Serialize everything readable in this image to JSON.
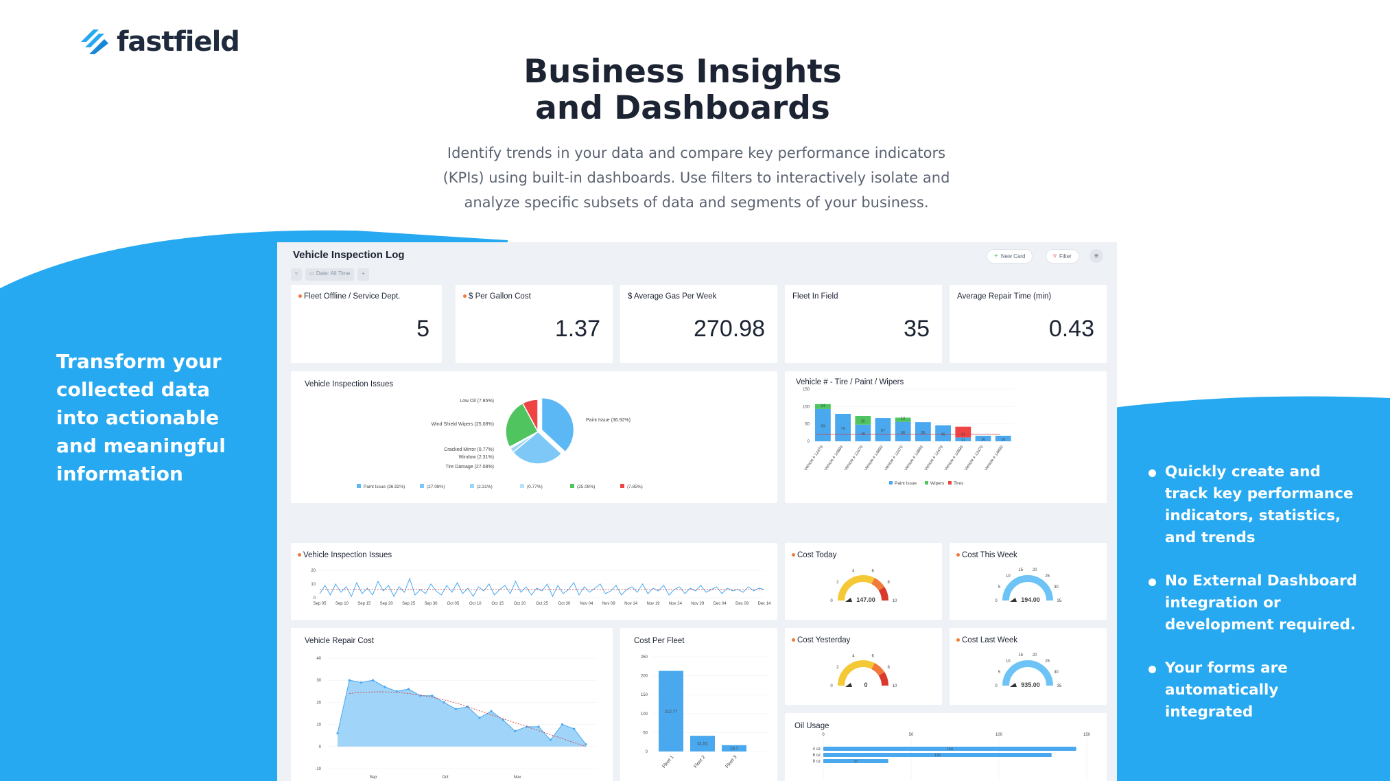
{
  "brand": {
    "name": "fastfield",
    "logo_icon": "stripes-logo-icon",
    "accent": "#26a9f1",
    "dark": "#1c2333"
  },
  "hero": {
    "title_line1": "Business Insights",
    "title_line2": "and Dashboards",
    "subtitle": "Identify trends in your data and compare key performance indicators (KPIs) using built-in dashboards. Use filters to interactively isolate and analyze specific subsets of data and segments of your business."
  },
  "left_panel": {
    "heading": "Transform your collected data into actionable and meaningful information"
  },
  "right_panel": {
    "bullets": [
      "Quickly create and track key performance indicators, statistics, and trends",
      "No External Dashboard integration or development required.",
      "Your forms are automatically integrated"
    ]
  },
  "dashboard": {
    "title": "Vehicle Inspection Log",
    "new_card_label": "New Card",
    "filter_label": "Filter",
    "date_filter": {
      "label": "Date:",
      "value": "All Time"
    },
    "kpis": [
      {
        "label": "Fleet Offline / Service Dept.",
        "value": "5",
        "dot": true
      },
      {
        "label": "$ Per Gallon Cost",
        "value": "1.37",
        "dot": true
      },
      {
        "label": "$ Average Gas Per Week",
        "value": "270.98",
        "dot": false
      },
      {
        "label": "Fleet In Field",
        "value": "35",
        "dot": false
      },
      {
        "label": "Average Repair Time (min)",
        "value": "0.43",
        "dot": false
      }
    ],
    "gauges": [
      {
        "label": "Cost Today",
        "value": "147.00",
        "ticks": [
          "0",
          "2",
          "4",
          "6",
          "8",
          "10"
        ]
      },
      {
        "label": "Cost This Week",
        "value": "194.00",
        "ticks": [
          "0",
          "5",
          "10",
          "15",
          "20",
          "25",
          "30",
          "35"
        ]
      },
      {
        "label": "Cost Yesterday",
        "value": "0",
        "ticks": [
          "0",
          "2",
          "4",
          "6",
          "8",
          "10"
        ]
      },
      {
        "label": "Cost Last Week",
        "value": "935.00",
        "ticks": [
          "0",
          "5",
          "10",
          "15",
          "20",
          "25",
          "30",
          "35"
        ]
      }
    ]
  },
  "chart_data": [
    {
      "type": "pie",
      "title": "Vehicle Inspection Issues",
      "slices": [
        {
          "label": "Paint Issue",
          "value": 36.92,
          "pct": "(36.92%)",
          "color": "#5bb8f5"
        },
        {
          "label": "Tire Damage",
          "value": 27.08,
          "pct": "(27.08%)",
          "color": "#7ec8f7"
        },
        {
          "label": "Window",
          "value": 2.31,
          "pct": "(2.31%)",
          "color": "#9dd5f8"
        },
        {
          "label": "Cracked Mirror",
          "value": 0.77,
          "pct": "(0.77%)",
          "color": "#b9e1fa"
        },
        {
          "label": "Wind Shield Wipers",
          "value": 25.08,
          "pct": "(25.08%)",
          "color": "#4fc45f"
        },
        {
          "label": "Low Oil",
          "value": 7.85,
          "pct": "(7.85%)",
          "color": "#ef4444"
        }
      ],
      "legend": [
        "Paint Issue (36.92%)",
        "(27.08%)",
        "(2.31%)",
        "(0.77%)",
        "(25.08%)",
        "(7.85%)"
      ]
    },
    {
      "type": "bar",
      "title": "Vehicle # - Tire / Paint / Wipers",
      "categories": [
        "Vehicle # 12470",
        "Vehicle # 14880",
        "Vehicle # 12470",
        "Vehicle # 14880",
        "Vehicle # 12470",
        "Vehicle # 14880",
        "Vehicle # 12470",
        "Vehicle # 14880",
        "Vehicle # 12470",
        "Vehicle # 14880"
      ],
      "series": [
        {
          "name": "Paint Issue",
          "color": "#4aa8ef",
          "values": [
            93,
            79,
            48,
            67,
            56,
            55,
            46,
            11,
            16,
            16
          ]
        },
        {
          "name": "Wipers",
          "color": "#4fc45f",
          "values": [
            14,
            0,
            25,
            0,
            12,
            0,
            0,
            0,
            0,
            0
          ]
        },
        {
          "name": "Tires",
          "color": "#ef4444",
          "values": [
            0,
            0,
            0,
            0,
            0,
            0,
            0,
            31,
            0,
            0
          ]
        }
      ],
      "bar_labels": [
        "93",
        "79",
        "48",
        "67",
        "56",
        "55",
        "46",
        "11",
        "16",
        "16"
      ],
      "stack_labels": [
        "14",
        "",
        "25",
        "",
        "12",
        "",
        "",
        "31",
        "",
        ""
      ],
      "ylim": [
        0,
        150
      ],
      "yticks": [
        "0",
        "50",
        "100",
        "150"
      ],
      "legend": [
        "Paint Issue",
        "Wipers",
        "Tires"
      ]
    },
    {
      "type": "line",
      "title": "Vehicle Inspection Issues",
      "xticks": [
        "Sep 05",
        "Sep 10",
        "Sep 15",
        "Sep 20",
        "Sep 25",
        "Sep 30",
        "Oct 05",
        "Oct 10",
        "Oct 15",
        "Oct 20",
        "Oct 25",
        "Oct 30",
        "Nov 04",
        "Nov 09",
        "Nov 14",
        "Nov 19",
        "Nov 24",
        "Nov 29",
        "Dec 04",
        "Dec 09",
        "Dec 14"
      ],
      "yticks": [
        "0",
        "10",
        "20"
      ],
      "ylim": [
        0,
        20
      ],
      "values": [
        3,
        9,
        2,
        10,
        4,
        8,
        1,
        11,
        3,
        7,
        2,
        12,
        5,
        9,
        1,
        8,
        4,
        14,
        2,
        6,
        3,
        10,
        5,
        2,
        9,
        4,
        11,
        3,
        7,
        1,
        8,
        5,
        10,
        2,
        6,
        9,
        3,
        12,
        4,
        8,
        2,
        7,
        5,
        10,
        1,
        9,
        3,
        6,
        11,
        2,
        8,
        4,
        7,
        10,
        3,
        5,
        9,
        2,
        6,
        8,
        4,
        10,
        3,
        7,
        5,
        9,
        2,
        6,
        8,
        3,
        7,
        5,
        9,
        4,
        6,
        8,
        3,
        7,
        5,
        6,
        4,
        8,
        5,
        7,
        6
      ],
      "trend": [
        6.2,
        6.0
      ]
    },
    {
      "type": "area",
      "title": "Vehicle Repair Cost",
      "xticks": [
        "Sep",
        "Oct",
        "Nov"
      ],
      "yticks": [
        "-10",
        "0",
        "10",
        "20",
        "30",
        "40"
      ],
      "ylim": [
        -10,
        40
      ],
      "values": [
        6,
        30,
        29,
        30,
        27,
        25,
        26,
        23,
        23,
        20,
        17,
        18,
        13,
        16,
        12,
        7,
        9,
        9,
        3,
        10,
        8,
        1
      ]
    },
    {
      "type": "bar",
      "title": "Cost Per Fleet",
      "categories": [
        "Fleet 1",
        "Fleet 2",
        "Fleet 3"
      ],
      "values": [
        212.77,
        41.51,
        16.7
      ],
      "bar_labels": [
        "212.77",
        "41.51",
        "16.7"
      ],
      "yticks": [
        "0",
        "50",
        "100",
        "150",
        "200",
        "250"
      ],
      "ylim": [
        0,
        250
      ]
    },
    {
      "type": "bar",
      "orientation": "horizontal",
      "title": "Oil Usage",
      "categories": [
        "4 oz",
        "6 oz",
        "8 oz"
      ],
      "values": [
        144,
        130,
        37
      ],
      "bar_labels": [
        "144",
        "130",
        "37"
      ],
      "xticks": [
        "0",
        "50",
        "100",
        "150"
      ],
      "xlim": [
        0,
        150
      ]
    }
  ]
}
